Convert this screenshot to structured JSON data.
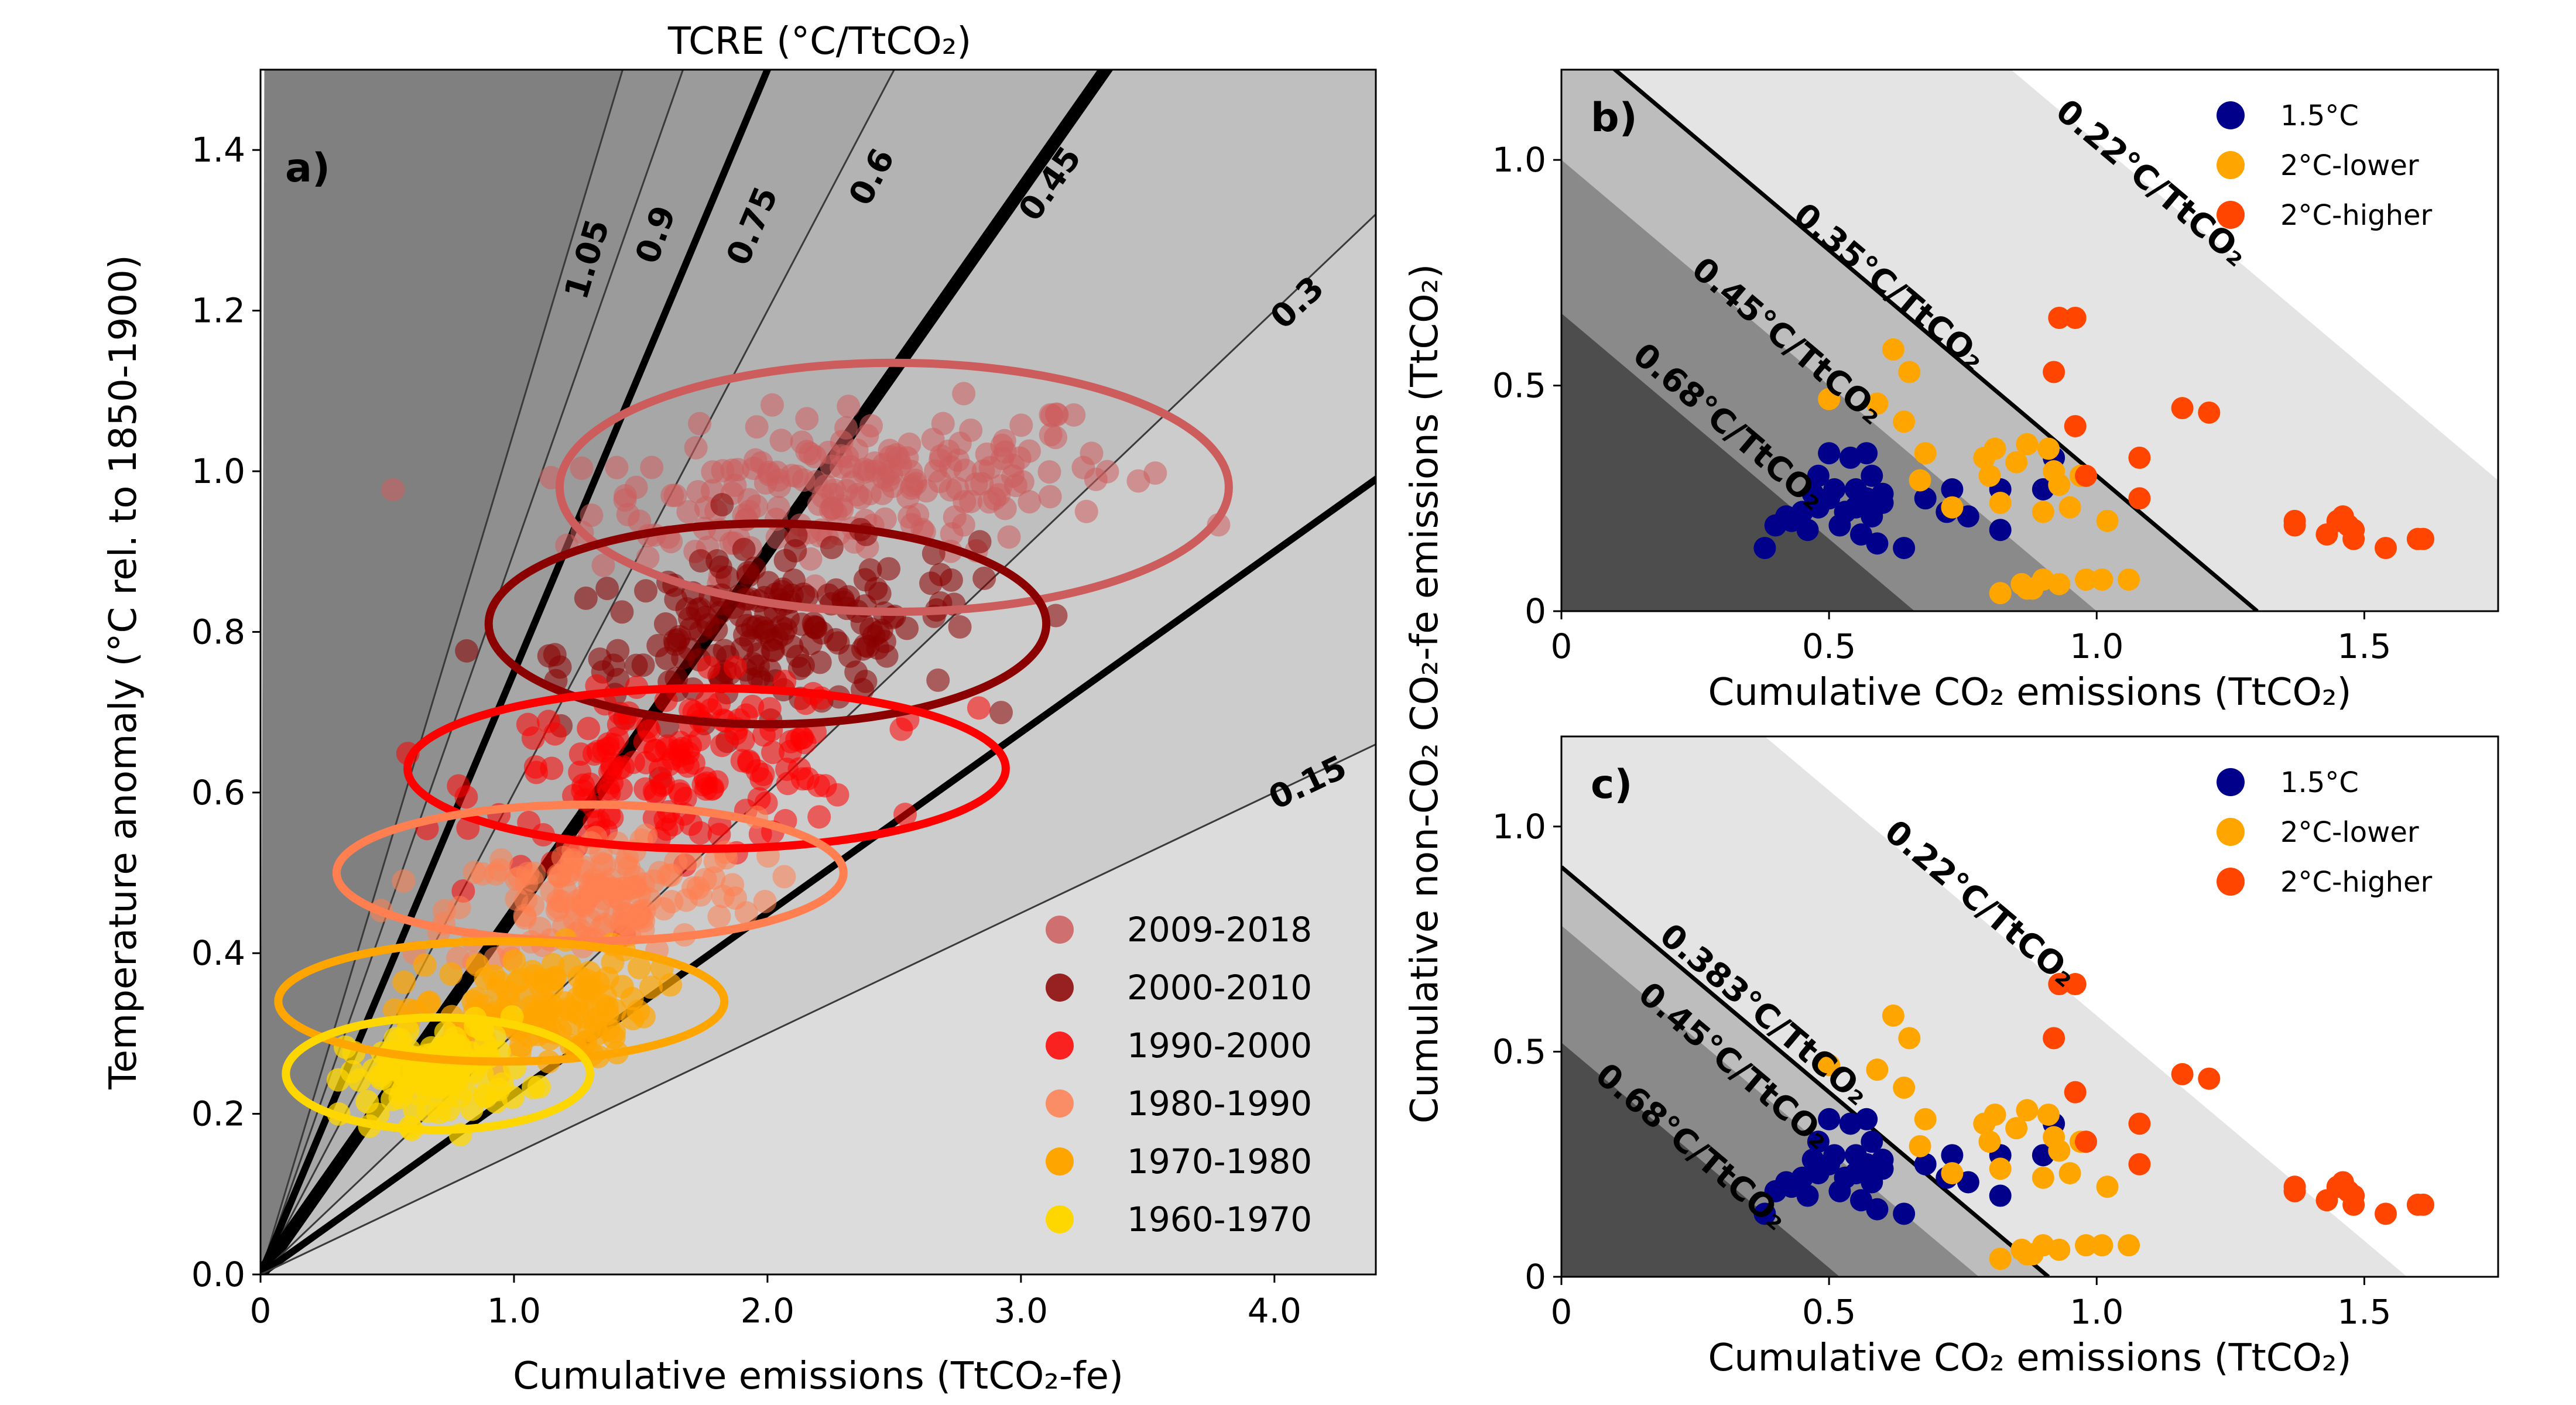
{
  "chart_data": [
    {
      "panel": "a)",
      "type": "scatter",
      "title": "TCRE (°C/TtCO₂)",
      "xlabel": "Cumulative emissions (TtCO₂-fe)",
      "ylabel": "Temperature anomaly (°C rel. to 1850-1900)",
      "xlim": [
        0,
        4.4
      ],
      "ylim": [
        0,
        1.5
      ],
      "xticks": [
        "0",
        "1.0",
        "2.0",
        "3.0",
        "4.0"
      ],
      "xtick_values": [
        0,
        1,
        2,
        3,
        4
      ],
      "yticks": [
        "0.0",
        "0.2",
        "0.4",
        "0.6",
        "0.8",
        "1.0",
        "1.2",
        "1.4"
      ],
      "ytick_values": [
        0,
        0.2,
        0.4,
        0.6,
        0.8,
        1.0,
        1.2,
        1.4
      ],
      "legend_position": "lower-right",
      "tcre_lines": [
        {
          "slope": 1.05,
          "label": "1.05",
          "weight": "thin"
        },
        {
          "slope": 0.9,
          "label": "0.9",
          "weight": "thin"
        },
        {
          "slope": 0.75,
          "label": "0.75",
          "weight": "thick"
        },
        {
          "slope": 0.6,
          "label": "0.6",
          "weight": "thin"
        },
        {
          "slope": 0.45,
          "label": "0.45",
          "weight": "thickest"
        },
        {
          "slope": 0.3,
          "label": "0.3",
          "weight": "thin"
        },
        {
          "slope": 0.225,
          "label": "",
          "weight": "thick"
        },
        {
          "slope": 0.15,
          "label": "0.15",
          "weight": "thin"
        }
      ],
      "series": [
        {
          "name": "2009-2018",
          "color": "#cd5c5c",
          "alpha": 0.55,
          "center": [
            2.35,
            0.98
          ],
          "spread": [
            1.05,
            0.045
          ],
          "n": 210,
          "ellipse": {
            "cx": 2.5,
            "cy": 0.98,
            "rx": 1.32,
            "ry": 0.155
          }
        },
        {
          "name": "2000-2010",
          "color": "#8b0000",
          "alpha": 0.55,
          "center": [
            2.0,
            0.8
          ],
          "spread": [
            0.82,
            0.05
          ],
          "n": 190,
          "ellipse": {
            "cx": 2.0,
            "cy": 0.81,
            "rx": 1.1,
            "ry": 0.125
          }
        },
        {
          "name": "1990-2000",
          "color": "#ff0000",
          "alpha": 0.55,
          "center": [
            1.65,
            0.63
          ],
          "spread": [
            0.75,
            0.05
          ],
          "n": 170,
          "ellipse": {
            "cx": 1.76,
            "cy": 0.63,
            "rx": 1.18,
            "ry": 0.1
          }
        },
        {
          "name": "1980-1990",
          "color": "#ff7f50",
          "alpha": 0.55,
          "center": [
            1.35,
            0.47
          ],
          "spread": [
            0.6,
            0.04
          ],
          "n": 150,
          "ellipse": {
            "cx": 1.3,
            "cy": 0.5,
            "rx": 1.0,
            "ry": 0.085
          }
        },
        {
          "name": "1970-1980",
          "color": "#ffa500",
          "alpha": 0.7,
          "center": [
            1.05,
            0.33
          ],
          "spread": [
            0.48,
            0.035
          ],
          "n": 130,
          "ellipse": {
            "cx": 0.95,
            "cy": 0.34,
            "rx": 0.88,
            "ry": 0.075
          }
        },
        {
          "name": "1960-1970",
          "color": "#ffd700",
          "alpha": 0.75,
          "center": [
            0.7,
            0.25
          ],
          "spread": [
            0.35,
            0.03
          ],
          "n": 110,
          "ellipse": {
            "cx": 0.7,
            "cy": 0.25,
            "rx": 0.6,
            "ry": 0.07
          }
        }
      ]
    },
    {
      "panel": "b)",
      "type": "scatter",
      "xlabel": "Cumulative CO₂ emissions (TtCO₂)",
      "ylabel": "Cumulative non-CO₂ CO₂-fe emissions (TtCO₂)",
      "xlim": [
        0,
        1.75
      ],
      "ylim": [
        0,
        1.2
      ],
      "xticks": [
        "0",
        "0.5",
        "1.0",
        "1.5"
      ],
      "xtick_values": [
        0,
        0.5,
        1.0,
        1.5
      ],
      "yticks": [
        "0",
        "0.5",
        "1.0"
      ],
      "ytick_values": [
        0,
        0.5,
        1.0
      ],
      "legend_position": "top-right",
      "budget_lines": [
        {
          "intercept": 1.3,
          "label": "0.35°C/TtCO₂"
        },
        {
          "intercept": 0.66,
          "label": "0.68°C/TtCO₂"
        },
        {
          "intercept": 1.0,
          "label": "0.45°C/TtCO₂"
        },
        {
          "intercept": 2.04,
          "label": "0.22°C/TtCO₂"
        }
      ]
    },
    {
      "panel": "c)",
      "type": "scatter",
      "xlabel": "Cumulative CO₂ emissions (TtCO₂)",
      "ylabel": "",
      "xlim": [
        0,
        1.75
      ],
      "ylim": [
        0,
        1.2
      ],
      "xticks": [
        "0",
        "0.5",
        "1.0",
        "1.5"
      ],
      "xtick_values": [
        0,
        0.5,
        1.0,
        1.5
      ],
      "yticks": [
        "0",
        "0.5",
        "1.0"
      ],
      "ytick_values": [
        0,
        0.5,
        1.0
      ],
      "legend_position": "top-right",
      "budget_lines": [
        {
          "intercept": 0.91,
          "label": "0.383°C/TtCO₂"
        },
        {
          "intercept": 0.52,
          "label": "0.68°C/TtCO₂"
        },
        {
          "intercept": 0.78,
          "label": "0.45°C/TtCO₂"
        },
        {
          "intercept": 1.58,
          "label": "0.22°C/TtCO₂"
        }
      ]
    }
  ],
  "scenarios": {
    "legend": [
      {
        "name": "1.5°C",
        "color": "#00008b"
      },
      {
        "name": "2°C-lower",
        "color": "#ffa500"
      },
      {
        "name": "2°C-higher",
        "color": "#ff4500"
      }
    ],
    "points": {
      "1.5°C": [
        [
          0.38,
          0.14
        ],
        [
          0.4,
          0.19
        ],
        [
          0.42,
          0.21
        ],
        [
          0.43,
          0.2
        ],
        [
          0.45,
          0.22
        ],
        [
          0.46,
          0.18
        ],
        [
          0.47,
          0.26
        ],
        [
          0.48,
          0.3
        ],
        [
          0.48,
          0.23
        ],
        [
          0.5,
          0.35
        ],
        [
          0.5,
          0.25
        ],
        [
          0.51,
          0.27
        ],
        [
          0.52,
          0.19
        ],
        [
          0.53,
          0.22
        ],
        [
          0.54,
          0.34
        ],
        [
          0.55,
          0.27
        ],
        [
          0.55,
          0.23
        ],
        [
          0.56,
          0.17
        ],
        [
          0.57,
          0.25
        ],
        [
          0.57,
          0.35
        ],
        [
          0.58,
          0.3
        ],
        [
          0.58,
          0.21
        ],
        [
          0.59,
          0.15
        ],
        [
          0.6,
          0.26
        ],
        [
          0.6,
          0.24
        ],
        [
          0.64,
          0.14
        ],
        [
          0.68,
          0.25
        ],
        [
          0.72,
          0.22
        ],
        [
          0.73,
          0.27
        ],
        [
          0.76,
          0.21
        ],
        [
          0.82,
          0.18
        ],
        [
          0.82,
          0.27
        ],
        [
          0.9,
          0.27
        ],
        [
          0.92,
          0.34
        ]
      ],
      "2°C-lower": [
        [
          0.5,
          0.47
        ],
        [
          0.59,
          0.46
        ],
        [
          0.62,
          0.58
        ],
        [
          0.64,
          0.42
        ],
        [
          0.65,
          0.53
        ],
        [
          0.67,
          0.29
        ],
        [
          0.68,
          0.35
        ],
        [
          0.73,
          0.23
        ],
        [
          0.79,
          0.34
        ],
        [
          0.8,
          0.3
        ],
        [
          0.81,
          0.36
        ],
        [
          0.82,
          0.24
        ],
        [
          0.82,
          0.04
        ],
        [
          0.85,
          0.33
        ],
        [
          0.86,
          0.06
        ],
        [
          0.87,
          0.05
        ],
        [
          0.87,
          0.37
        ],
        [
          0.88,
          0.05
        ],
        [
          0.9,
          0.07
        ],
        [
          0.9,
          0.22
        ],
        [
          0.91,
          0.36
        ],
        [
          0.92,
          0.31
        ],
        [
          0.93,
          0.28
        ],
        [
          0.93,
          0.06
        ],
        [
          0.95,
          0.23
        ],
        [
          0.97,
          0.3
        ],
        [
          0.98,
          0.07
        ],
        [
          1.01,
          0.07
        ],
        [
          1.02,
          0.2
        ],
        [
          1.06,
          0.07
        ]
      ],
      "2°C-higher": [
        [
          0.92,
          0.53
        ],
        [
          0.93,
          0.65
        ],
        [
          0.96,
          0.65
        ],
        [
          0.96,
          0.41
        ],
        [
          0.98,
          0.3
        ],
        [
          1.08,
          0.25
        ],
        [
          1.08,
          0.34
        ],
        [
          1.16,
          0.45
        ],
        [
          1.21,
          0.44
        ],
        [
          1.37,
          0.19
        ],
        [
          1.37,
          0.2
        ],
        [
          1.43,
          0.17
        ],
        [
          1.45,
          0.2
        ],
        [
          1.46,
          0.21
        ],
        [
          1.47,
          0.19
        ],
        [
          1.48,
          0.18
        ],
        [
          1.48,
          0.16
        ],
        [
          1.54,
          0.14
        ],
        [
          1.6,
          0.16
        ],
        [
          1.61,
          0.16
        ]
      ]
    }
  }
}
